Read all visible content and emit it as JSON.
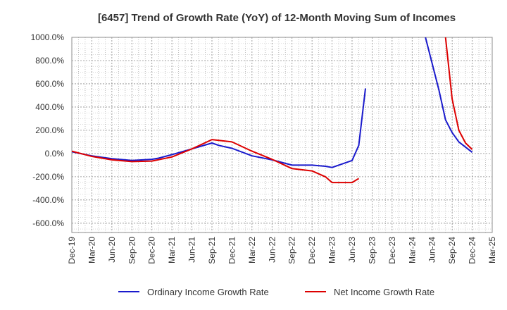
{
  "chart_data": {
    "type": "line",
    "title": "[6457]  Trend of Growth Rate (YoY) of 12-Month Moving Sum of Incomes",
    "xlabel": "",
    "ylabel": "",
    "ylim": [
      -680,
      1000
    ],
    "y_ticks": [
      "1000.0%",
      "800.0%",
      "600.0%",
      "400.0%",
      "200.0%",
      "0.0%",
      "-200.0%",
      "-400.0%",
      "-600.0%"
    ],
    "y_tick_values": [
      1000,
      800,
      600,
      400,
      200,
      0,
      -200,
      -400,
      -600
    ],
    "x_tick_labels": [
      "Dec-19",
      "Mar-20",
      "Jun-20",
      "Sep-20",
      "Dec-20",
      "Mar-21",
      "Jun-21",
      "Sep-21",
      "Dec-21",
      "Mar-22",
      "Jun-22",
      "Sep-22",
      "Dec-22",
      "Mar-23",
      "Jun-23",
      "Sep-23",
      "Dec-23",
      "Mar-24",
      "Jun-24",
      "Sep-24",
      "Dec-24",
      "Mar-25"
    ],
    "grid": true,
    "legend_position": "bottom",
    "series": [
      {
        "name": "Ordinary Income Growth Rate",
        "color": "#1a1acc",
        "segments": [
          [
            [
              "Dec-19",
              15
            ],
            [
              "Mar-20",
              -20
            ],
            [
              "Jun-20",
              -45
            ],
            [
              "Sep-20",
              -60
            ],
            [
              "Dec-20",
              -50
            ],
            [
              "Jan-21",
              -40
            ],
            [
              "Mar-21",
              -10
            ],
            [
              "Jun-21",
              40
            ],
            [
              "Sep-21",
              90
            ],
            [
              "Oct-21",
              70
            ],
            [
              "Dec-21",
              45
            ],
            [
              "Mar-22",
              -20
            ],
            [
              "Jun-22",
              -55
            ],
            [
              "Sep-22",
              -100
            ],
            [
              "Dec-22",
              -100
            ],
            [
              "Feb-23",
              -110
            ],
            [
              "Mar-23",
              -120
            ],
            [
              "Jun-23",
              -60
            ],
            [
              "Jul-23",
              70
            ],
            [
              "Aug-23",
              560
            ]
          ],
          [
            [
              "May-24",
              1000
            ],
            [
              "Jul-24",
              550
            ],
            [
              "Aug-24",
              290
            ],
            [
              "Sep-24",
              180
            ],
            [
              "Oct-24",
              100
            ],
            [
              "Dec-24",
              10
            ]
          ]
        ]
      },
      {
        "name": "Net Income Growth Rate",
        "color": "#dd0000",
        "segments": [
          [
            [
              "Dec-19",
              20
            ],
            [
              "Mar-20",
              -25
            ],
            [
              "Jun-20",
              -55
            ],
            [
              "Sep-20",
              -70
            ],
            [
              "Dec-20",
              -65
            ],
            [
              "Mar-21",
              -30
            ],
            [
              "Jun-21",
              40
            ],
            [
              "Sep-21",
              120
            ],
            [
              "Dec-21",
              100
            ],
            [
              "Mar-22",
              20
            ],
            [
              "Jun-22",
              -50
            ],
            [
              "Sep-22",
              -130
            ],
            [
              "Dec-22",
              -150
            ],
            [
              "Feb-23",
              -200
            ],
            [
              "Mar-23",
              -250
            ],
            [
              "Jun-23",
              -250
            ],
            [
              "Jul-23",
              -215
            ]
          ],
          [
            [
              "Aug-24",
              1000
            ],
            [
              "Sep-24",
              470
            ],
            [
              "Oct-24",
              200
            ],
            [
              "Nov-24",
              90
            ],
            [
              "Dec-24",
              35
            ]
          ]
        ]
      }
    ]
  }
}
